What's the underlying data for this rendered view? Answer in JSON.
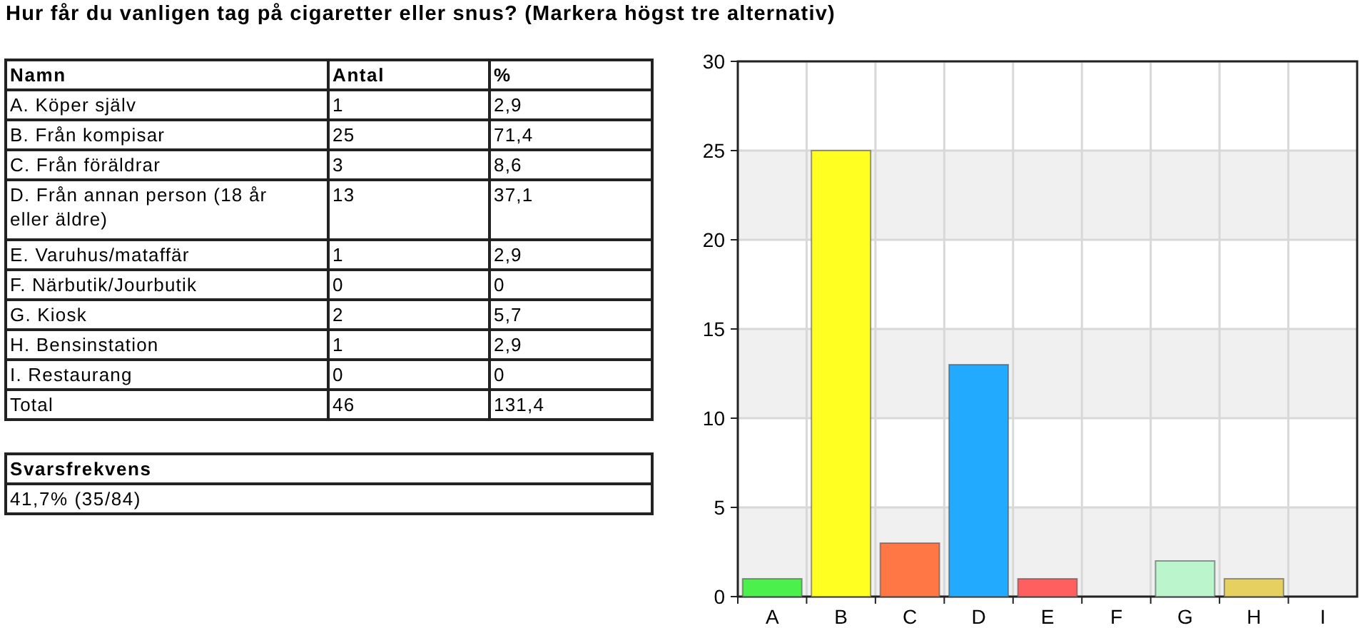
{
  "chart_data": [
    {
      "type": "other",
      "title": "Hur får du vanligen tag på cigaretter eller snus? (Markera högst tre alternativ)",
      "xlabel": "Namn",
      "categories": [
        "A. Köper själv",
        "B. Från kompisar",
        "C. Från föräldrar",
        "D. Från annan person (18 år eller äldre)",
        "E. Varuhus/mataffär",
        "F. Närbutik/Jourbutik",
        "G. Kiosk",
        "H. Bensinstation",
        "I. Restaurang",
        "Total"
      ],
      "series": [
        {
          "name": "Antal",
          "values": [
            1,
            25,
            3,
            13,
            1,
            0,
            2,
            1,
            0,
            46
          ]
        },
        {
          "name": "%",
          "values": [
            2.9,
            71.4,
            8.6,
            37.1,
            2.9,
            0,
            5.7,
            2.9,
            0,
            131.4
          ],
          "value_labels": [
            "2,9",
            "71,4",
            "8,6",
            "37,1",
            "2,9",
            "0",
            "5,7",
            "2,9",
            "0",
            "131,4"
          ]
        }
      ],
      "data_labels": true,
      "annotations": [
        "Svarsfrekvens",
        "41,7% (35/84)"
      ]
    },
    {
      "type": "bar",
      "categories": [
        "A",
        "B",
        "C",
        "D",
        "E",
        "F",
        "G",
        "H",
        "I"
      ],
      "values": [
        1,
        25,
        3,
        13,
        1,
        0,
        2,
        1,
        0
      ],
      "colors": [
        "#4cf04c",
        "#ffff22",
        "#ff7744",
        "#22aaff",
        "#ff5f5f",
        "#cccccc",
        "#bbf5cc",
        "#e6d060",
        "#cccccc"
      ],
      "ylim": [
        0,
        30
      ],
      "yticks": [
        0,
        5,
        10,
        15,
        20,
        25,
        30
      ],
      "grid": true,
      "bands": [
        {
          "axis": "y",
          "from": 0,
          "to": 5,
          "color": "#f0f0f0"
        },
        {
          "axis": "y",
          "from": 10,
          "to": 15,
          "color": "#f0f0f0"
        },
        {
          "axis": "y",
          "from": 20,
          "to": 25,
          "color": "#f0f0f0"
        }
      ]
    }
  ]
}
